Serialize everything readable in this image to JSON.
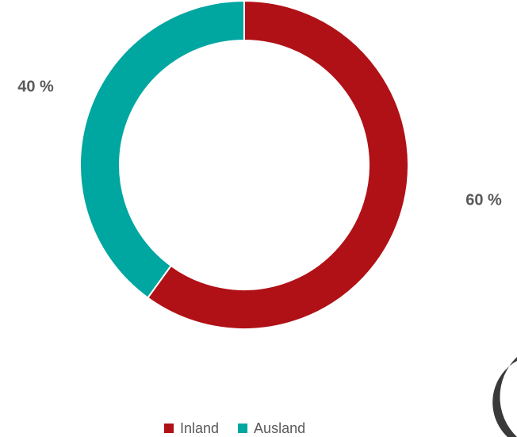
{
  "chart_data": {
    "type": "donut",
    "categories": [
      "Inland",
      "Ausland"
    ],
    "values": [
      60,
      40
    ],
    "value_labels": [
      "60 %",
      "40 %"
    ],
    "colors": [
      "#b01116",
      "#00a6a0"
    ],
    "legend": "bottom"
  }
}
